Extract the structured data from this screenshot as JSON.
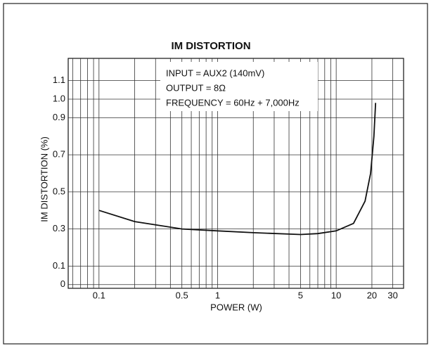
{
  "chart_data": {
    "type": "line",
    "title": "IM DISTORTION",
    "x_label": "POWER (W)",
    "y_label": "IM DISTORTION (%)",
    "annotations": [
      "INPUT = AUX2 (140mV)",
      "OUTPUT = 8Ω",
      "FREQUENCY = 60Hz + 7,000Hz"
    ],
    "x_scale": "log",
    "xlim": [
      0.055,
      37
    ],
    "ylim": [
      -0.02,
      1.22
    ],
    "xticks": [
      0.1,
      0.5,
      1,
      5,
      10,
      20,
      30
    ],
    "minor_xticks": [
      0.06,
      0.07,
      0.08,
      0.09,
      0.1,
      0.2,
      0.3,
      0.4,
      0.5,
      0.6,
      0.7,
      0.8,
      0.9,
      1,
      2,
      3,
      4,
      5,
      6,
      7,
      8,
      9,
      10,
      20,
      30
    ],
    "yticks": [
      0,
      0.1,
      0.3,
      0.5,
      0.7,
      0.9,
      {
        "value": 1,
        "label": "1.0"
      },
      1.1
    ],
    "grid": true,
    "series": [
      {
        "color": "#111111",
        "x": [
          0.1,
          0.2,
          0.5,
          1,
          2,
          5,
          7,
          10,
          14,
          17.5,
          19.5,
          20.8,
          21.5
        ],
        "values": [
          0.4,
          0.34,
          0.3,
          0.29,
          0.28,
          0.27,
          0.275,
          0.29,
          0.33,
          0.45,
          0.6,
          0.8,
          0.98
        ]
      }
    ]
  }
}
